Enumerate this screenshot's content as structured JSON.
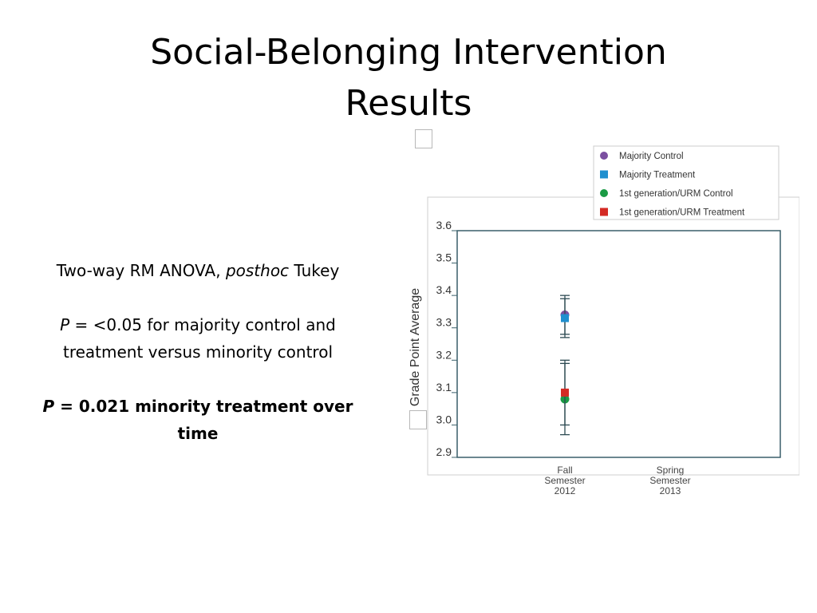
{
  "slide": {
    "title_line1": "Social-Belonging Intervention",
    "title_line2": "Results",
    "stats": {
      "line1_prefix": "Two-way RM ANOVA, ",
      "line1_italic": "posthoc",
      "line1_suffix": " Tukey",
      "line2_p": "P",
      "line2_text": " = <0.05 for majority control and treatment versus minority control",
      "line3_p": "P",
      "line3_text": " = 0.021 minority treatment over time"
    }
  },
  "chart_data": {
    "type": "scatter",
    "ylabel": "Grade Point Average",
    "xlabel": "",
    "ylim": [
      2.9,
      3.6
    ],
    "yticks": [
      "2.9",
      "3.0",
      "3.1",
      "3.2",
      "3.3",
      "3.4",
      "3.5",
      "3.6"
    ],
    "categories": [
      [
        "Fall",
        "Semester",
        "2012"
      ],
      [
        "Spring",
        "Semester",
        "2013"
      ]
    ],
    "grid": false,
    "legend_position": "top-right",
    "series": [
      {
        "name": "Majority Control",
        "marker": "circle",
        "color": "#7b4fa0",
        "values": [
          3.34,
          null
        ],
        "error": [
          0.06,
          null
        ]
      },
      {
        "name": "Majority Treatment",
        "marker": "square",
        "color": "#1f8fcf",
        "values": [
          3.33,
          null
        ],
        "error": [
          0.06,
          null
        ]
      },
      {
        "name": "1st generation/URM Control",
        "marker": "circle",
        "color": "#1a9a44",
        "values": [
          3.08,
          null
        ],
        "error": [
          0.11,
          null
        ]
      },
      {
        "name": "1st generation/URM Treatment",
        "marker": "square",
        "color": "#d42a24",
        "values": [
          3.1,
          null
        ],
        "error": [
          0.1,
          null
        ]
      }
    ]
  }
}
